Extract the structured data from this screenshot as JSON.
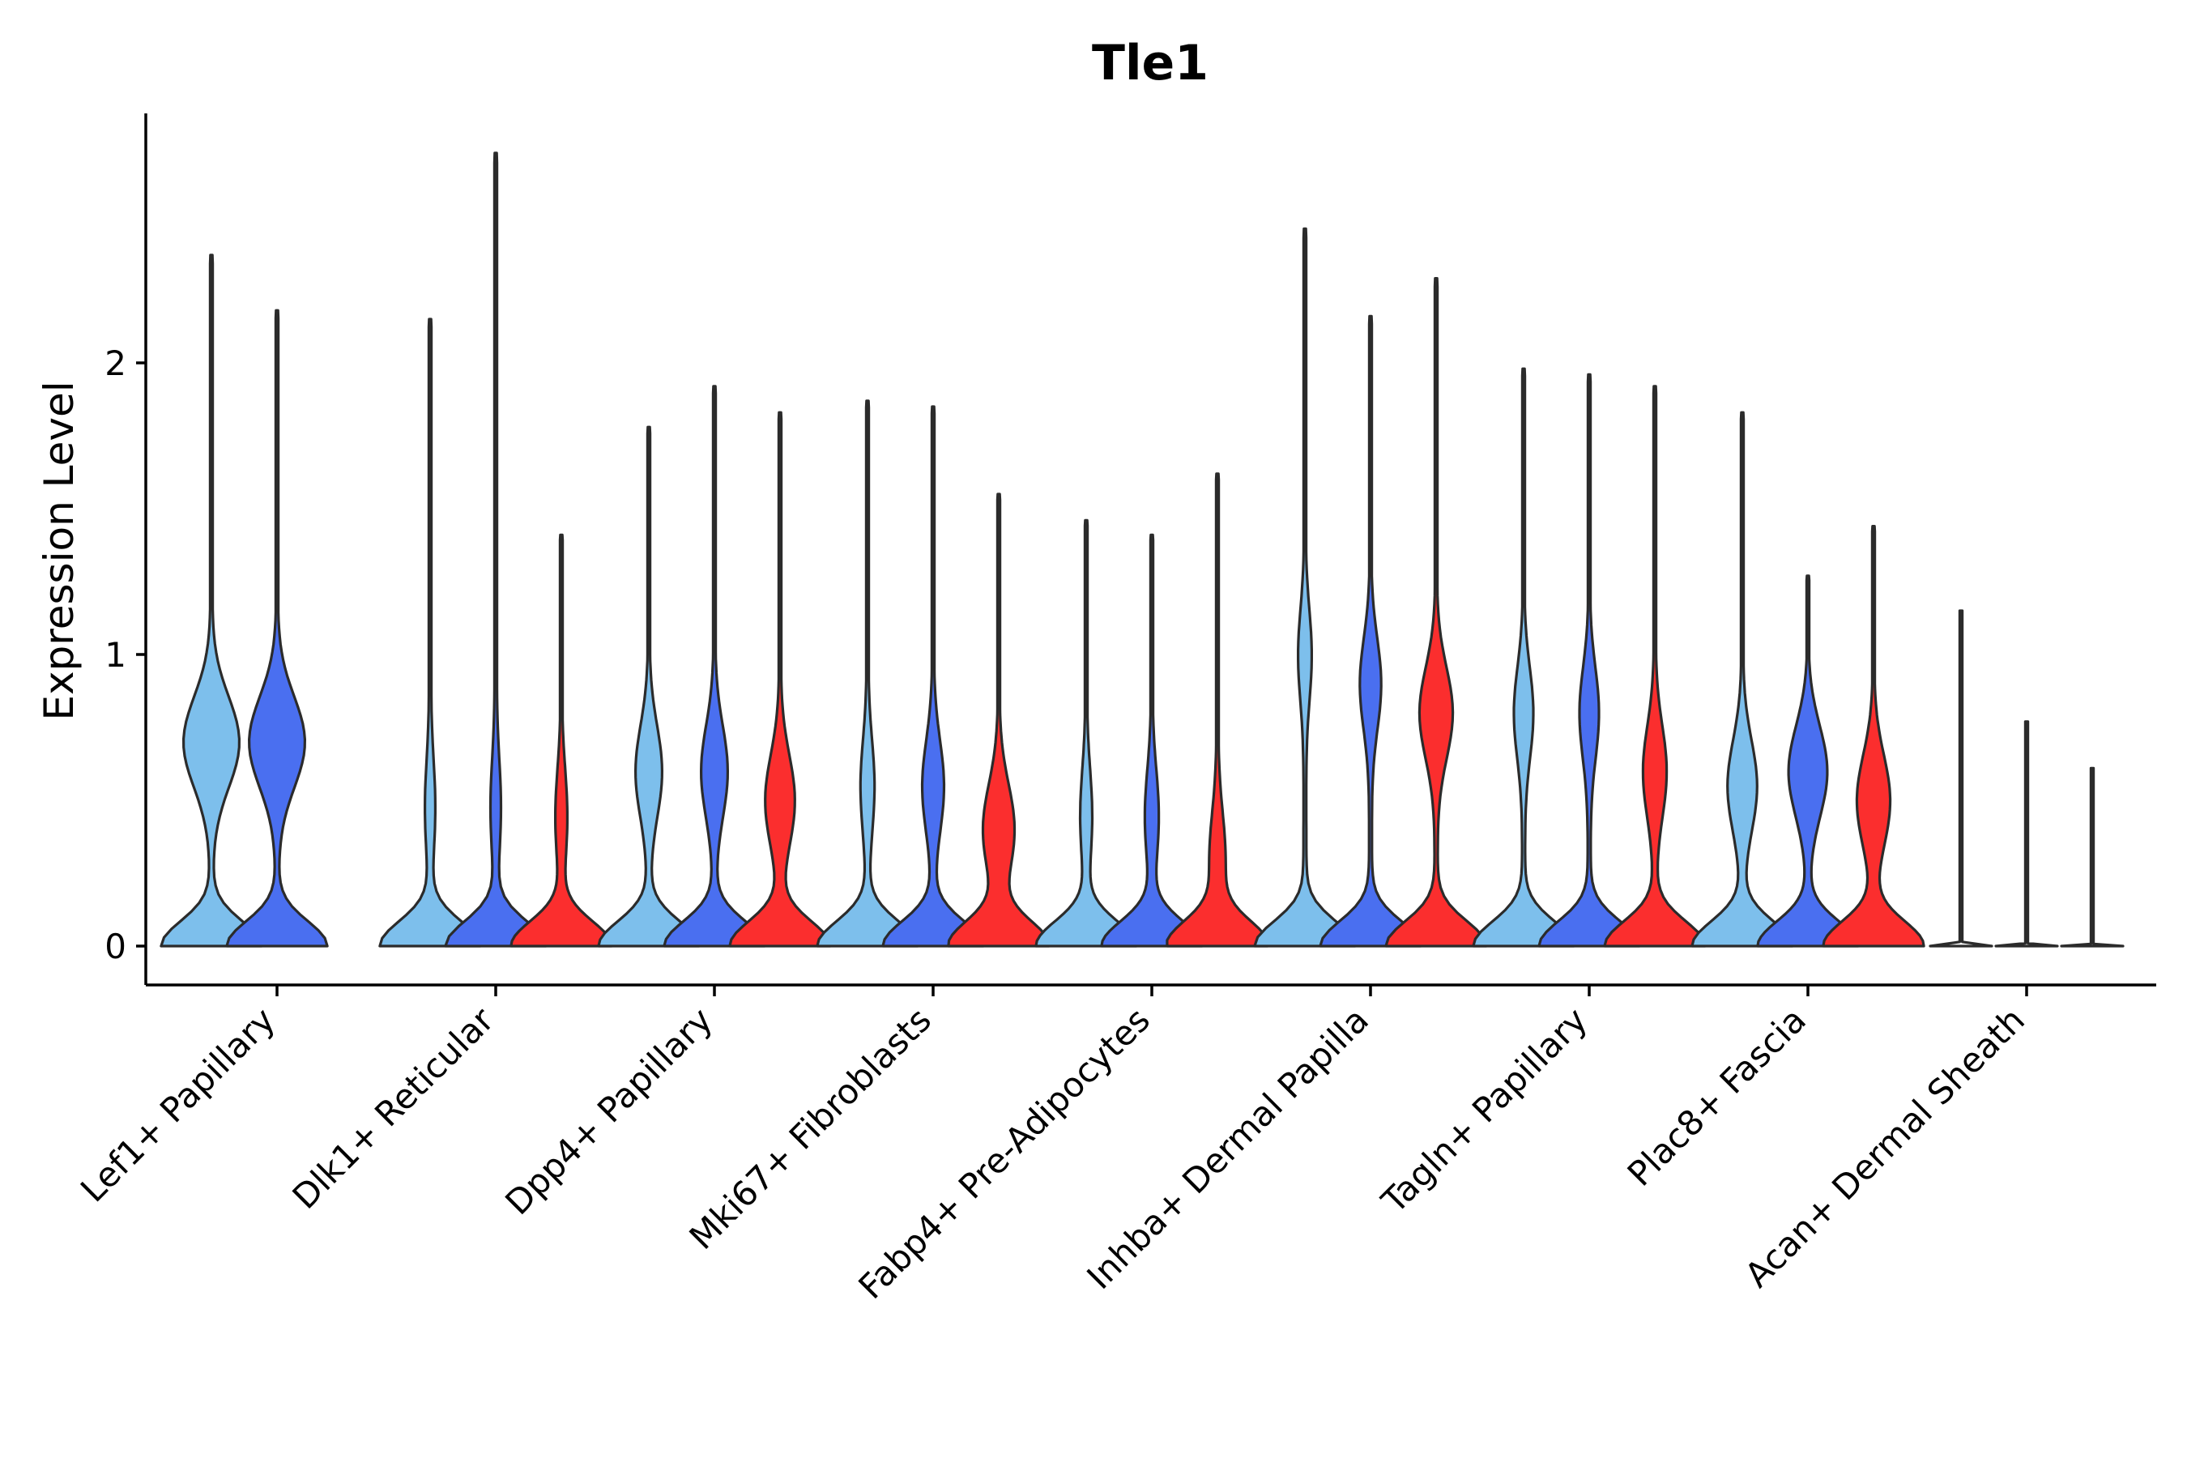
{
  "chart_data": {
    "type": "violin",
    "title": "Tle1",
    "xlabel": "",
    "ylabel": "Expression Level",
    "ylim": [
      -0.14,
      2.85
    ],
    "yticks": [
      0,
      1,
      2
    ],
    "legend": "none",
    "grid": false,
    "group_colors": [
      "#7dbfec",
      "#4a6ff0",
      "#fb2e2e"
    ],
    "categories": [
      "Lef1+ Papillary",
      "Dlk1+ Reticular",
      "Dpp4+ Papillary",
      "Mki67+ Fibroblasts",
      "Fabp4+ Pre-Adipocytes",
      "Inhba+ Dermal Papilla",
      "Tagln+ Papillary",
      "Plac8+ Fascia",
      "Acan+ Dermal Sheath"
    ],
    "violins": [
      {
        "category": "Lef1+ Papillary",
        "group": 0,
        "max": 2.37,
        "mode": 0.7,
        "peak_density": 0.55
      },
      {
        "category": "Lef1+ Papillary",
        "group": 1,
        "max": 2.18,
        "mode": 0.7,
        "peak_density": 0.55
      },
      {
        "category": "Dlk1+ Reticular",
        "group": 0,
        "max": 2.15,
        "mode": 0.48,
        "peak_density": 0.08
      },
      {
        "category": "Dlk1+ Reticular",
        "group": 1,
        "max": 2.72,
        "mode": 0.48,
        "peak_density": 0.08
      },
      {
        "category": "Dlk1+ Reticular",
        "group": 2,
        "max": 1.41,
        "mode": 0.45,
        "peak_density": 0.1
      },
      {
        "category": "Dpp4+ Papillary",
        "group": 0,
        "max": 1.78,
        "mode": 0.6,
        "peak_density": 0.25
      },
      {
        "category": "Dpp4+ Papillary",
        "group": 1,
        "max": 1.92,
        "mode": 0.6,
        "peak_density": 0.25
      },
      {
        "category": "Dpp4+ Papillary",
        "group": 2,
        "max": 1.83,
        "mode": 0.5,
        "peak_density": 0.28
      },
      {
        "category": "Mki67+ Fibroblasts",
        "group": 0,
        "max": 1.87,
        "mode": 0.55,
        "peak_density": 0.12
      },
      {
        "category": "Mki67+ Fibroblasts",
        "group": 1,
        "max": 1.85,
        "mode": 0.55,
        "peak_density": 0.2
      },
      {
        "category": "Mki67+ Fibroblasts",
        "group": 2,
        "max": 1.55,
        "mode": 0.4,
        "peak_density": 0.3
      },
      {
        "category": "Fabp4+ Pre-Adipocytes",
        "group": 0,
        "max": 1.46,
        "mode": 0.45,
        "peak_density": 0.1
      },
      {
        "category": "Fabp4+ Pre-Adipocytes",
        "group": 1,
        "max": 1.41,
        "mode": 0.45,
        "peak_density": 0.12
      },
      {
        "category": "Fabp4+ Pre-Adipocytes",
        "group": 2,
        "max": 1.62,
        "mode": 0.3,
        "peak_density": 0.14
      },
      {
        "category": "Inhba+ Dermal Papilla",
        "group": 0,
        "max": 2.46,
        "mode": 1.0,
        "peak_density": 0.12
      },
      {
        "category": "Inhba+ Dermal Papilla",
        "group": 1,
        "max": 2.16,
        "mode": 0.9,
        "peak_density": 0.2
      },
      {
        "category": "Inhba+ Dermal Papilla",
        "group": 2,
        "max": 2.29,
        "mode": 0.8,
        "peak_density": 0.32
      },
      {
        "category": "Tagln+ Papillary",
        "group": 0,
        "max": 1.98,
        "mode": 0.8,
        "peak_density": 0.18
      },
      {
        "category": "Tagln+ Papillary",
        "group": 1,
        "max": 1.96,
        "mode": 0.8,
        "peak_density": 0.18
      },
      {
        "category": "Tagln+ Papillary",
        "group": 2,
        "max": 1.92,
        "mode": 0.6,
        "peak_density": 0.22
      },
      {
        "category": "Plac8+ Fascia",
        "group": 0,
        "max": 1.83,
        "mode": 0.55,
        "peak_density": 0.28
      },
      {
        "category": "Plac8+ Fascia",
        "group": 1,
        "max": 1.27,
        "mode": 0.6,
        "peak_density": 0.38
      },
      {
        "category": "Plac8+ Fascia",
        "group": 2,
        "max": 1.44,
        "mode": 0.5,
        "peak_density": 0.32
      },
      {
        "category": "Acan+ Dermal Sheath",
        "group": 0,
        "max": 1.15,
        "mode": 0.5,
        "peak_density": 0.0
      },
      {
        "category": "Acan+ Dermal Sheath",
        "group": 1,
        "max": 0.77,
        "mode": 0.5,
        "peak_density": 0.0
      },
      {
        "category": "Acan+ Dermal Sheath",
        "group": 2,
        "max": 0.61,
        "mode": 0.3,
        "peak_density": 0.0
      }
    ]
  }
}
